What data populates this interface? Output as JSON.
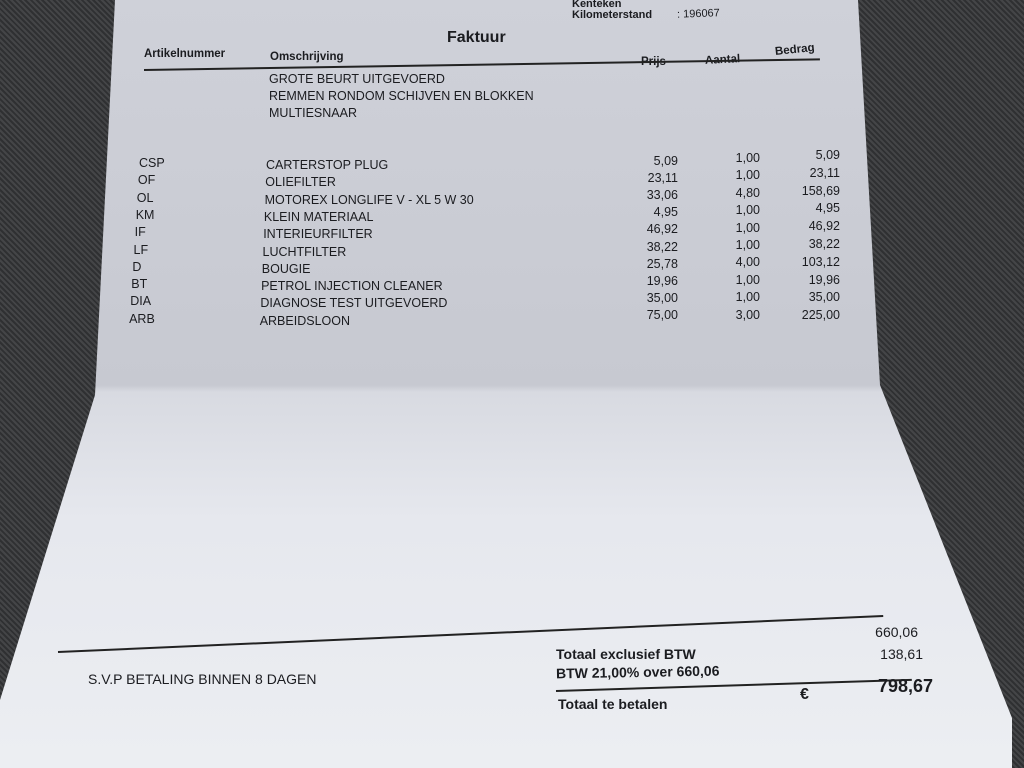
{
  "header": {
    "kenteken_label": "Kenteken",
    "kilometerstand_label": "Kilometerstand",
    "kilometerstand_value": ": 196067",
    "title": "Faktuur"
  },
  "columns": {
    "artikelnummer": "Artikelnummer",
    "omschrijving": "Omschrijving",
    "prijs": "Prijs",
    "aantal": "Aantal",
    "bedrag": "Bedrag"
  },
  "notes": [
    "GROTE BEURT UITGEVOERD",
    "REMMEN RONDOM SCHIJVEN EN BLOKKEN",
    "MULTIESNAAR"
  ],
  "items": [
    {
      "code": "CSP",
      "desc": "CARTERSTOP PLUG",
      "prijs": "5,09",
      "aantal": "1,00",
      "bedrag": "5,09"
    },
    {
      "code": "OF",
      "desc": "OLIEFILTER",
      "prijs": "23,11",
      "aantal": "1,00",
      "bedrag": "23,11"
    },
    {
      "code": "OL",
      "desc": "MOTOREX LONGLIFE V - XL 5 W 30",
      "prijs": "33,06",
      "aantal": "4,80",
      "bedrag": "158,69"
    },
    {
      "code": "KM",
      "desc": "KLEIN MATERIAAL",
      "prijs": "4,95",
      "aantal": "1,00",
      "bedrag": "4,95"
    },
    {
      "code": "IF",
      "desc": "INTERIEURFILTER",
      "prijs": "46,92",
      "aantal": "1,00",
      "bedrag": "46,92"
    },
    {
      "code": "LF",
      "desc": "LUCHTFILTER",
      "prijs": "38,22",
      "aantal": "1,00",
      "bedrag": "38,22"
    },
    {
      "code": "D",
      "desc": "BOUGIE",
      "prijs": "25,78",
      "aantal": "4,00",
      "bedrag": "103,12"
    },
    {
      "code": "BT",
      "desc": "PETROL INJECTION CLEANER",
      "prijs": "19,96",
      "aantal": "1,00",
      "bedrag": "19,96"
    },
    {
      "code": "DIA",
      "desc": "DIAGNOSE TEST UITGEVOERD",
      "prijs": "35,00",
      "aantal": "1,00",
      "bedrag": "35,00"
    },
    {
      "code": "ARB",
      "desc": "ARBEIDSLOON",
      "prijs": "75,00",
      "aantal": "3,00",
      "bedrag": "225,00"
    }
  ],
  "footer": {
    "payment_note": "S.V.P BETALING BINNEN 8 DAGEN",
    "excl_label": "Totaal exclusief BTW",
    "excl_value": "660,06",
    "btw_label": "BTW 21,00% over 660,06",
    "btw_value": "138,61",
    "total_label": "Totaal te betalen",
    "currency": "€",
    "total_value": "798,67"
  }
}
